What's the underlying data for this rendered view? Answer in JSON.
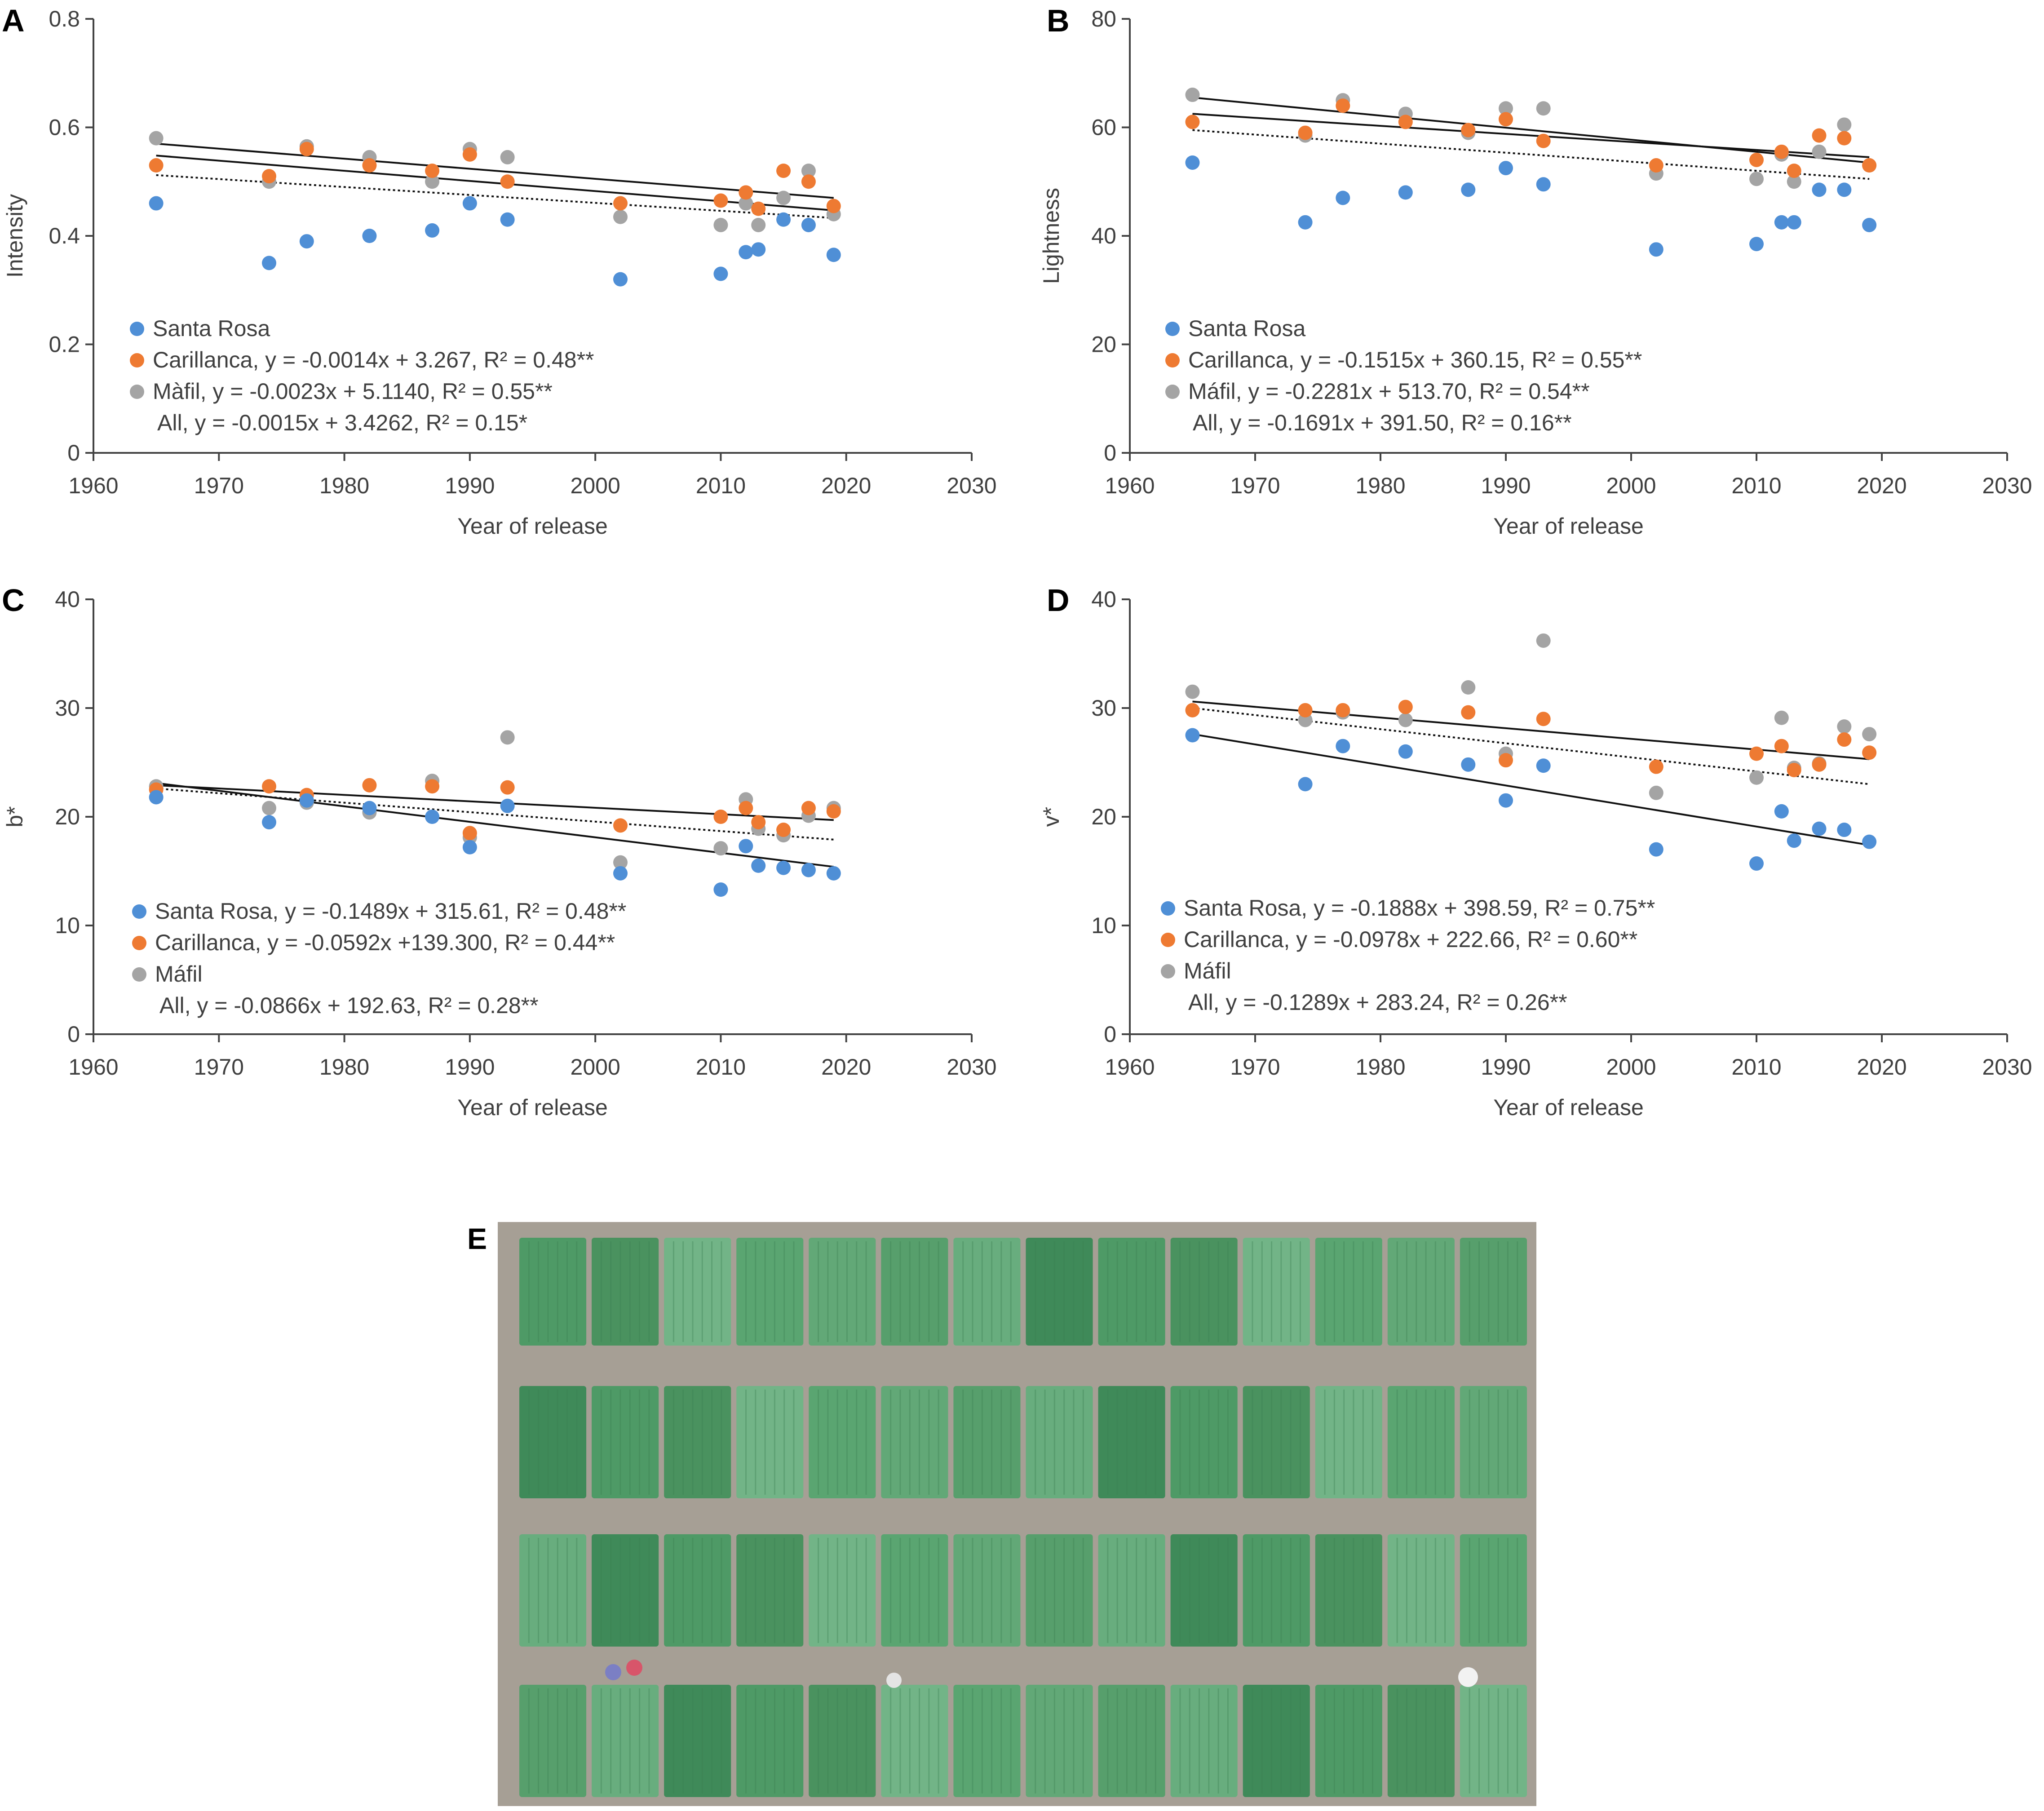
{
  "figure": {
    "photo_panel_label": "E",
    "photo_description_name": "aerial-field-plots-photo"
  },
  "colors": {
    "santa_rosa": "#4f8fd6",
    "carillanca": "#ee7a32",
    "mafil": "#a4a4a4",
    "axis": "#444444",
    "text": "#404040",
    "trend": "#111111",
    "soil": "#a69f95",
    "plot_light": "#6fae80",
    "plot_dark": "#3f8a59"
  },
  "chart_data": [
    {
      "panel": "A",
      "type": "scatter",
      "xlabel": "Year of release",
      "ylabel": "Intensity",
      "xlim": [
        1960,
        2030
      ],
      "ylim": [
        0,
        0.8
      ],
      "xticks": [
        "1960",
        "1970",
        "1980",
        "1990",
        "2000",
        "2010",
        "2020",
        "2030"
      ],
      "yticks": [
        "0",
        "0.2",
        "0.4",
        "0.6",
        "0.8"
      ],
      "series": [
        {
          "name": "Santa Rosa",
          "key": "santa_rosa",
          "legend": "Santa Rosa",
          "x": [
            1965,
            1974,
            1977,
            1982,
            1987,
            1990,
            1993,
            2002,
            2010,
            2012,
            2013,
            2015,
            2017,
            2019
          ],
          "y": [
            0.46,
            0.35,
            0.39,
            0.4,
            0.41,
            0.46,
            0.43,
            0.32,
            0.33,
            0.37,
            0.375,
            0.43,
            0.42,
            0.365
          ]
        },
        {
          "name": "Carillanca",
          "key": "carillanca",
          "legend": "Carillanca, y = -0.0014x + 3.267, R² = 0.48**",
          "x": [
            1965,
            1974,
            1977,
            1982,
            1987,
            1990,
            1993,
            2002,
            2010,
            2012,
            2013,
            2015,
            2017,
            2019
          ],
          "y": [
            0.53,
            0.51,
            0.56,
            0.53,
            0.52,
            0.55,
            0.5,
            0.46,
            0.465,
            0.48,
            0.45,
            0.52,
            0.5,
            0.455
          ]
        },
        {
          "name": "Máfil",
          "key": "mafil",
          "legend": "Màfil, y = -0.0023x + 5.1140, R² = 0.55**",
          "x": [
            1965,
            1974,
            1977,
            1982,
            1987,
            1990,
            1993,
            2002,
            2010,
            2012,
            2013,
            2015,
            2017,
            2019
          ],
          "y": [
            0.58,
            0.5,
            0.565,
            0.545,
            0.5,
            0.56,
            0.545,
            0.435,
            0.42,
            0.46,
            0.42,
            0.47,
            0.52,
            0.44
          ]
        }
      ],
      "trendlines": [
        {
          "style": "solid",
          "x": [
            1965,
            2019
          ],
          "y": [
            0.57,
            0.47
          ]
        },
        {
          "style": "solid",
          "x": [
            1965,
            2019
          ],
          "y": [
            0.548,
            0.447
          ]
        },
        {
          "style": "dotted",
          "x": [
            1965,
            2019
          ],
          "y": [
            0.512,
            0.433
          ]
        }
      ],
      "all_legend": "All, y = -0.0015x + 3.4262, R² = 0.15*"
    },
    {
      "panel": "B",
      "type": "scatter",
      "xlabel": "Year of release",
      "ylabel": "Lightness",
      "xlim": [
        1960,
        2030
      ],
      "ylim": [
        0,
        80
      ],
      "xticks": [
        "1960",
        "1970",
        "1980",
        "1990",
        "2000",
        "2010",
        "2020",
        "2030"
      ],
      "yticks": [
        "0",
        "20",
        "40",
        "60",
        "80"
      ],
      "series": [
        {
          "name": "Santa Rosa",
          "key": "santa_rosa",
          "legend": "Santa Rosa",
          "x": [
            1965,
            1974,
            1977,
            1982,
            1987,
            1990,
            1993,
            2002,
            2010,
            2012,
            2013,
            2015,
            2017,
            2019
          ],
          "y": [
            53.5,
            42.5,
            47,
            48,
            48.5,
            52.5,
            49.5,
            37.5,
            38.5,
            42.5,
            42.5,
            48.5,
            48.5,
            42
          ]
        },
        {
          "name": "Carillanca",
          "key": "carillanca",
          "legend": "Carillanca, y = -0.1515x + 360.15, R² = 0.55**",
          "x": [
            1965,
            1974,
            1977,
            1982,
            1987,
            1990,
            1993,
            2002,
            2010,
            2012,
            2013,
            2015,
            2017,
            2019
          ],
          "y": [
            61,
            59,
            64,
            61,
            59.5,
            61.5,
            57.5,
            53,
            54,
            55.5,
            52,
            58.5,
            58,
            53
          ]
        },
        {
          "name": "Máfil",
          "key": "mafil",
          "legend": "Máfil, y = -0.2281x + 513.70, R² = 0.54**",
          "x": [
            1965,
            1974,
            1977,
            1982,
            1987,
            1990,
            1993,
            2002,
            2010,
            2012,
            2013,
            2015,
            2017,
            2019
          ],
          "y": [
            66,
            58.5,
            65,
            62.5,
            59,
            63.5,
            63.5,
            51.5,
            50.5,
            55,
            50,
            55.5,
            60.5,
            53
          ]
        }
      ],
      "trendlines": [
        {
          "style": "solid",
          "x": [
            1965,
            2019
          ],
          "y": [
            65.5,
            53.5
          ]
        },
        {
          "style": "solid",
          "x": [
            1965,
            2019
          ],
          "y": [
            62.5,
            54.5
          ]
        },
        {
          "style": "dotted",
          "x": [
            1965,
            2019
          ],
          "y": [
            59.5,
            50.5
          ]
        }
      ],
      "all_legend": "All, y = -0.1691x + 391.50, R² = 0.16**"
    },
    {
      "panel": "C",
      "type": "scatter",
      "xlabel": "Year of release",
      "ylabel": "b*",
      "xlim": [
        1960,
        2030
      ],
      "ylim": [
        0,
        40
      ],
      "xticks": [
        "1960",
        "1970",
        "1980",
        "1990",
        "2000",
        "2010",
        "2020",
        "2030"
      ],
      "yticks": [
        "0",
        "10",
        "20",
        "30",
        "40"
      ],
      "series": [
        {
          "name": "Santa Rosa",
          "key": "santa_rosa",
          "legend": "Santa Rosa, y = -0.1489x + 315.61, R² = 0.48**",
          "x": [
            1965,
            1974,
            1977,
            1982,
            1987,
            1990,
            1993,
            2002,
            2010,
            2012,
            2013,
            2015,
            2017,
            2019
          ],
          "y": [
            21.8,
            19.5,
            21.5,
            20.8,
            20,
            17.2,
            21,
            14.8,
            13.3,
            17.3,
            15.5,
            15.3,
            15.1,
            14.8
          ]
        },
        {
          "name": "Carillanca",
          "key": "carillanca",
          "legend": "Carillanca, y = -0.0592x +139.300, R² = 0.44**",
          "x": [
            1965,
            1974,
            1977,
            1982,
            1987,
            1990,
            1993,
            2002,
            2010,
            2012,
            2013,
            2015,
            2017,
            2019
          ],
          "y": [
            22.5,
            22.8,
            22,
            22.9,
            22.8,
            18.5,
            22.7,
            19.2,
            20,
            20.8,
            19.5,
            18.8,
            20.8,
            20.5
          ]
        },
        {
          "name": "Máfil",
          "key": "mafil",
          "legend": "Máfil",
          "x": [
            1965,
            1974,
            1977,
            1982,
            1987,
            1990,
            1993,
            2002,
            2010,
            2012,
            2013,
            2015,
            2017,
            2019
          ],
          "y": [
            22.8,
            20.8,
            21.3,
            20.4,
            23.3,
            18.1,
            27.3,
            15.8,
            17.1,
            21.6,
            18.9,
            18.3,
            20.1,
            20.8
          ]
        }
      ],
      "trendlines": [
        {
          "style": "solid",
          "x": [
            1965,
            2019
          ],
          "y": [
            23.1,
            15.4
          ]
        },
        {
          "style": "solid",
          "x": [
            1965,
            2019
          ],
          "y": [
            22.9,
            19.7
          ]
        },
        {
          "style": "dotted",
          "x": [
            1965,
            2019
          ],
          "y": [
            22.6,
            17.9
          ]
        }
      ],
      "all_legend": "All, y = -0.0866x + 192.63, R² = 0.28**"
    },
    {
      "panel": "D",
      "type": "scatter",
      "xlabel": "Year of release",
      "ylabel": "v*",
      "xlim": [
        1960,
        2030
      ],
      "ylim": [
        0,
        40
      ],
      "xticks": [
        "1960",
        "1970",
        "1980",
        "1990",
        "2000",
        "2010",
        "2020",
        "2030"
      ],
      "yticks": [
        "0",
        "10",
        "20",
        "30",
        "40"
      ],
      "series": [
        {
          "name": "Santa Rosa",
          "key": "santa_rosa",
          "legend": "Santa Rosa, y = -0.1888x + 398.59, R² = 0.75**",
          "x": [
            1965,
            1974,
            1977,
            1982,
            1987,
            1990,
            1993,
            2002,
            2010,
            2012,
            2013,
            2015,
            2017,
            2019
          ],
          "y": [
            27.5,
            23,
            26.5,
            26,
            24.8,
            21.5,
            24.7,
            17,
            15.7,
            20.5,
            17.8,
            18.9,
            18.8,
            17.7
          ]
        },
        {
          "name": "Carillanca",
          "key": "carillanca",
          "legend": "Carillanca, y = -0.0978x + 222.66, R² = 0.60**",
          "x": [
            1965,
            1974,
            1977,
            1982,
            1987,
            1990,
            1993,
            2002,
            2010,
            2012,
            2013,
            2015,
            2017,
            2019
          ],
          "y": [
            29.8,
            29.8,
            29.8,
            30.1,
            29.6,
            25.2,
            29,
            24.6,
            25.8,
            26.5,
            24.3,
            24.8,
            27.1,
            25.9
          ]
        },
        {
          "name": "Máfil",
          "key": "mafil",
          "legend": "Máfil",
          "x": [
            1965,
            1974,
            1977,
            1982,
            1987,
            1990,
            1993,
            2002,
            2010,
            2012,
            2013,
            2015,
            2017,
            2019
          ],
          "y": [
            31.5,
            28.9,
            29.6,
            28.9,
            31.9,
            25.8,
            36.2,
            22.2,
            23.6,
            29.1,
            24.5,
            24.9,
            28.3,
            27.6
          ]
        }
      ],
      "trendlines": [
        {
          "style": "solid",
          "x": [
            1965,
            2019
          ],
          "y": [
            27.6,
            17.4
          ]
        },
        {
          "style": "solid",
          "x": [
            1965,
            2019
          ],
          "y": [
            30.6,
            25.3
          ]
        },
        {
          "style": "dotted",
          "x": [
            1965,
            2019
          ],
          "y": [
            30.0,
            23.0
          ]
        }
      ],
      "all_legend": "All, y = -0.1289x + 283.24, R² = 0.26**"
    }
  ]
}
